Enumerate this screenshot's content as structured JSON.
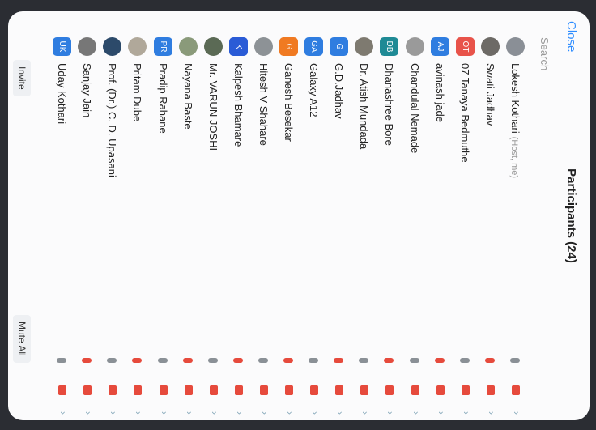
{
  "header": {
    "close": "Close",
    "title": "Participants (24)",
    "search": "Search"
  },
  "participants": [
    {
      "name": "Lokesh Kothari",
      "suffix": "(Host, me)",
      "color": "#8a8f96"
    },
    {
      "name": "Swati Jadhav",
      "color": "#6d6a66"
    },
    {
      "name": "07 Tanaya Bedmuthe",
      "initials": "OT",
      "color": "#e8534a"
    },
    {
      "name": "avinash jade",
      "initials": "AJ",
      "color": "#2f7de0"
    },
    {
      "name": "Chandulal Nemade",
      "color": "#9a9a9a"
    },
    {
      "name": "Dhanashree Bore",
      "initials": "DB",
      "color": "#1f8a95"
    },
    {
      "name": "Dr. Atish Mundada",
      "color": "#7e7a70"
    },
    {
      "name": "G.D.Jadhav",
      "initials": "G",
      "color": "#2f7de0"
    },
    {
      "name": "Galaxy A12",
      "initials": "GA",
      "color": "#2f7de0"
    },
    {
      "name": "Ganesh Besekar",
      "initials": "G",
      "color": "#f07a22"
    },
    {
      "name": "Hitesh V Shahare",
      "color": "#8d9296"
    },
    {
      "name": "Kalpesh Bhamare",
      "initials": "K",
      "color": "#2a5bd6"
    },
    {
      "name": "Mr. VARUN JOSHI",
      "color": "#5b6a55"
    },
    {
      "name": "Nayana Baste",
      "color": "#8a9a7a"
    },
    {
      "name": "Pradip Rahane",
      "initials": "PR",
      "color": "#2f7de0"
    },
    {
      "name": "Pritam Dube",
      "color": "#b0a89a"
    },
    {
      "name": "Prof. (Dr.) C. D. Upasani",
      "color": "#2c4a6a"
    },
    {
      "name": "Sanjay Jain",
      "color": "#777"
    },
    {
      "name": "Uday Kothari",
      "initials": "UK",
      "color": "#2f7de0"
    }
  ],
  "footer": {
    "invite": "Invite",
    "mute_all": "Mute All"
  }
}
